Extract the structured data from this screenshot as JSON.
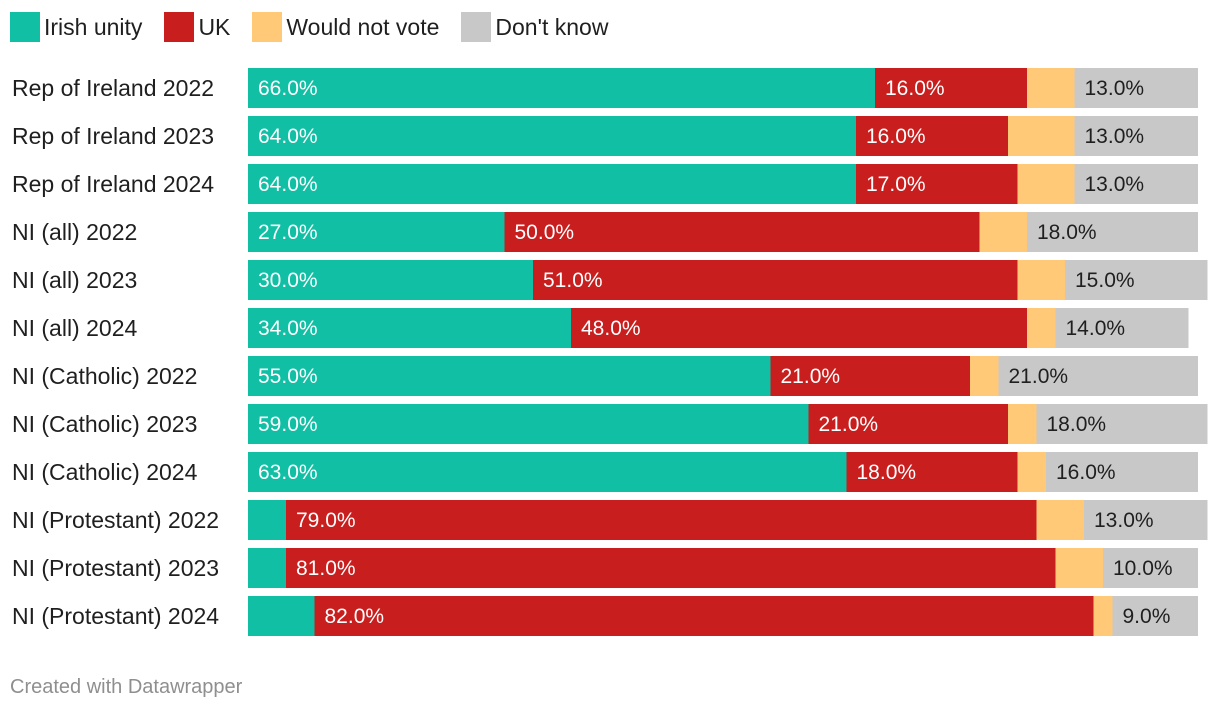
{
  "chart_data": {
    "type": "bar",
    "stacked": true,
    "orientation": "horizontal",
    "categories": [
      "Rep of Ireland 2022",
      "Rep of Ireland 2023",
      "Rep of Ireland 2024",
      "NI (all) 2022",
      "NI (all) 2023",
      "NI (all) 2024",
      "NI (Catholic) 2022",
      "NI (Catholic) 2023",
      "NI (Catholic) 2024",
      "NI (Protestant) 2022",
      "NI (Protestant) 2023",
      "NI (Protestant) 2024"
    ],
    "series": [
      {
        "name": "Irish unity",
        "color": "#10bfa4",
        "values": [
          66,
          64,
          64,
          27,
          30,
          34,
          55,
          59,
          63,
          4,
          4,
          7
        ]
      },
      {
        "name": "UK",
        "color": "#c81e1e",
        "values": [
          16,
          16,
          17,
          50,
          51,
          48,
          21,
          21,
          18,
          79,
          81,
          82
        ]
      },
      {
        "name": "Would not vote",
        "color": "#ffc978",
        "values": [
          5,
          7,
          6,
          5,
          5,
          3,
          3,
          3,
          3,
          5,
          5,
          2
        ]
      },
      {
        "name": "Don't know",
        "color": "#c8c8c8",
        "values": [
          13,
          13,
          13,
          18,
          15,
          14,
          21,
          18,
          16,
          13,
          10,
          9
        ]
      }
    ],
    "labels": [
      [
        "66.0%",
        "16.0%",
        "",
        "13.0%"
      ],
      [
        "64.0%",
        "16.0%",
        "",
        "13.0%"
      ],
      [
        "64.0%",
        "17.0%",
        "",
        "13.0%"
      ],
      [
        "27.0%",
        "50.0%",
        "",
        "18.0%"
      ],
      [
        "30.0%",
        "51.0%",
        "",
        "15.0%"
      ],
      [
        "34.0%",
        "48.0%",
        "",
        "14.0%"
      ],
      [
        "55.0%",
        "21.0%",
        "",
        "21.0%"
      ],
      [
        "59.0%",
        "21.0%",
        "",
        "18.0%"
      ],
      [
        "63.0%",
        "18.0%",
        "",
        "16.0%"
      ],
      [
        "",
        "79.0%",
        "",
        "13.0%"
      ],
      [
        "",
        "81.0%",
        "",
        "10.0%"
      ],
      [
        "",
        "82.0%",
        "",
        "9.0%"
      ]
    ],
    "label_colors": [
      "#ffffff",
      "#ffffff",
      "#1f1f1f",
      "#1f1f1f"
    ],
    "xlim": [
      0,
      100
    ],
    "legend_position": "top-left",
    "grid": false
  },
  "footer": {
    "credit": "Created with Datawrapper"
  }
}
